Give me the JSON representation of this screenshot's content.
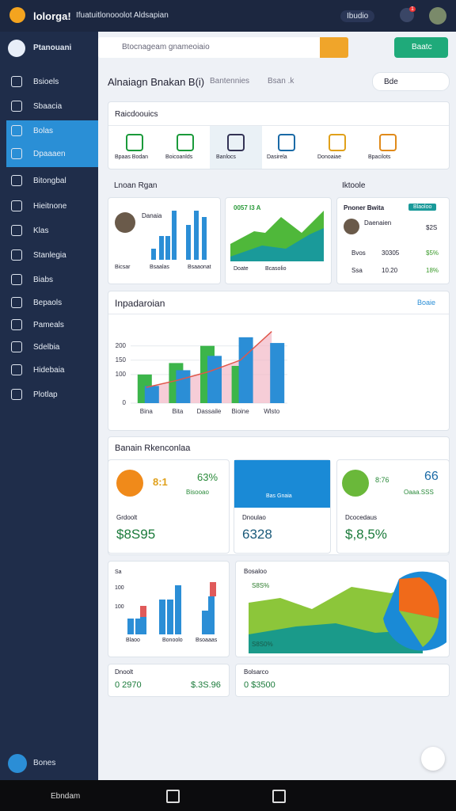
{
  "header": {
    "brand": "lolorga!",
    "subtitle": "Ifuatuitlonooolot Aldsapian",
    "user": "Ibudio",
    "badge": "1"
  },
  "sidebar": {
    "title": "Ptanouani",
    "items": [
      "Bsioels",
      "Sbaacia",
      "Bolas",
      "Dpaaaen",
      "Bitongbal",
      "Hieitnone",
      "Klas",
      "Stanlegia",
      "Biabs",
      "Bepaols",
      "Pameals",
      "Sdelbia",
      "Hidebaia",
      "Plotlap"
    ],
    "footer": "Bones"
  },
  "search": {
    "placeholder": "Btocnageam gnameoiaio"
  },
  "action_button": "Baatc",
  "page": {
    "title": "Alnaiagn Bnakan B(i)",
    "tabs": [
      "Bantennies",
      "Bsan .k"
    ],
    "toolbar": "Bde"
  },
  "shortcuts": {
    "title": "Raicdoouics",
    "tiles": [
      "Bpaas Bodan",
      "Boicoanlds",
      "Banlocs",
      "Dasirela",
      "Donoaiae",
      "Bpacilots"
    ]
  },
  "overview": {
    "title": "Lnoan Rgan",
    "side_title": "Iktoole",
    "card1": {
      "name": "Danaia",
      "labels": [
        "Bicsar",
        "Bsaalas",
        "Bsaaonat"
      ]
    },
    "card2": {
      "value": "0057 I3 A",
      "labels": [
        "Doate",
        "Bcasolio"
      ]
    },
    "card3": {
      "title": "Pnoner Bwita",
      "badge": "Blaoloo",
      "name": "Daenaien",
      "value": "$2S",
      "rows": [
        [
          "Bvos",
          "30305",
          "$5%"
        ],
        [
          "Ssa",
          "10.20",
          "18%"
        ]
      ]
    }
  },
  "chart_data": {
    "type": "bar",
    "title": "Inpadaroian",
    "control": "Boaie",
    "categories": [
      "Bina",
      "Bita",
      "Dassaile",
      "Bioine",
      "Wlsto"
    ],
    "series": [
      {
        "color": "#3cb54a",
        "values": [
          100,
          140,
          200,
          130,
          null
        ]
      },
      {
        "color": "#2b8ed6",
        "values": [
          60,
          115,
          165,
          230,
          210
        ]
      },
      {
        "type": "area",
        "color": "#e0574a",
        "values": [
          55,
          80,
          110,
          150,
          250
        ]
      }
    ],
    "ylim": [
      0,
      260
    ],
    "yticks": [
      0,
      100,
      150,
      200
    ]
  },
  "summary": {
    "title": "Banain Rkenconlaa",
    "cards": [
      {
        "top": "8:1",
        "pct": "63%",
        "sub": "Bisooao",
        "label": "Grdoolt",
        "value": "$8S95"
      },
      {
        "top": "Bas Gnaia",
        "label": "Dnoulao",
        "value": "6328"
      },
      {
        "top": "8:76",
        "pct": "66",
        "sub": "Oaaa.SSS",
        "label": "Dcocedaus",
        "value": "$,8,5%"
      }
    ]
  },
  "bottom": {
    "bars_ticks": [
      "Sa",
      "100",
      "100"
    ],
    "bars_labels": [
      "Blaoo",
      "Bonoolo",
      "Bsoaaas"
    ],
    "area_title": "Bosaloo",
    "area_labels": [
      "S8S%",
      "S8S0%"
    ],
    "footer_left": {
      "title": "Dnoolt",
      "a": "0 2970",
      "b": "$.3S.96"
    },
    "footer_right": {
      "title": "Bolsarco",
      "a": "0 $3500"
    }
  },
  "nav": {
    "label": "Ebndam"
  }
}
